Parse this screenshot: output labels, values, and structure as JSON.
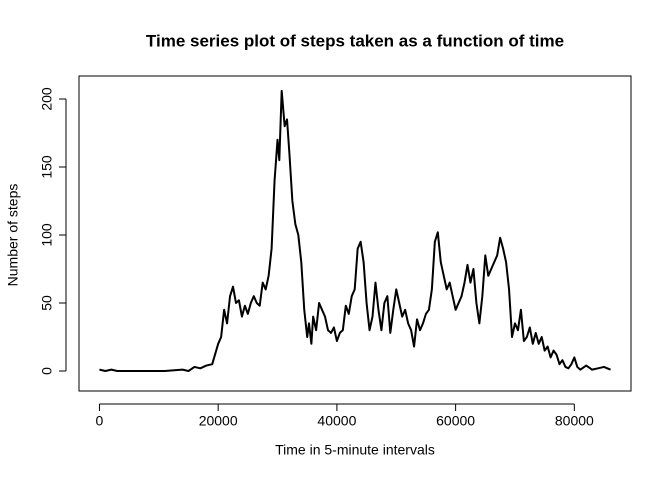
{
  "chart_data": {
    "type": "line",
    "title": "Time series plot of steps taken as a function of time",
    "x_label": "Time in 5-minute intervals",
    "y_label": "Number of steps",
    "color": "#000000",
    "x": [
      0,
      1000,
      2000,
      3000,
      5000,
      8000,
      11000,
      14000,
      15000,
      16000,
      17000,
      18000,
      19000,
      20000,
      20500,
      21000,
      21500,
      22000,
      22500,
      23000,
      23500,
      24000,
      24500,
      25000,
      25500,
      26000,
      26500,
      27000,
      27500,
      28000,
      28500,
      29000,
      29500,
      30000,
      30300,
      30700,
      31200,
      31600,
      32000,
      32500,
      33000,
      33500,
      34000,
      34500,
      35000,
      35300,
      35700,
      36000,
      36500,
      37000,
      37500,
      38000,
      38500,
      39000,
      39500,
      40000,
      40500,
      41000,
      41500,
      42000,
      42500,
      43000,
      43500,
      44000,
      44500,
      45000,
      45500,
      46000,
      46500,
      47000,
      47500,
      48000,
      48500,
      49000,
      49500,
      50000,
      50500,
      51000,
      51500,
      52000,
      52500,
      53000,
      53500,
      54000,
      54500,
      55000,
      55500,
      56000,
      56500,
      57000,
      57500,
      58000,
      58500,
      59000,
      59500,
      60000,
      60500,
      61000,
      61500,
      62000,
      62500,
      63000,
      63500,
      64000,
      64500,
      65000,
      65500,
      66000,
      66500,
      67000,
      67500,
      68000,
      68500,
      69000,
      69500,
      70000,
      70500,
      71000,
      71500,
      72000,
      72500,
      73000,
      73500,
      74000,
      74500,
      75000,
      75500,
      76000,
      76500,
      77000,
      77500,
      78000,
      78500,
      79000,
      79500,
      80000,
      80500,
      81000,
      82000,
      83000,
      84000,
      85000,
      86100
    ],
    "values": [
      1,
      0,
      1,
      0,
      0,
      0,
      0,
      1,
      0,
      3,
      2,
      4,
      5,
      20,
      25,
      45,
      35,
      55,
      62,
      50,
      52,
      40,
      48,
      42,
      50,
      55,
      50,
      48,
      65,
      60,
      70,
      90,
      140,
      170,
      155,
      206,
      180,
      185,
      160,
      125,
      108,
      100,
      80,
      45,
      25,
      35,
      20,
      40,
      30,
      50,
      45,
      40,
      30,
      28,
      32,
      22,
      28,
      30,
      48,
      42,
      55,
      60,
      90,
      95,
      80,
      50,
      30,
      40,
      65,
      45,
      30,
      50,
      55,
      28,
      45,
      60,
      50,
      40,
      45,
      35,
      30,
      18,
      38,
      30,
      35,
      42,
      45,
      60,
      95,
      102,
      80,
      70,
      60,
      65,
      55,
      45,
      50,
      55,
      65,
      78,
      65,
      75,
      50,
      35,
      55,
      85,
      70,
      75,
      80,
      85,
      98,
      90,
      80,
      60,
      25,
      35,
      30,
      45,
      22,
      25,
      32,
      20,
      28,
      20,
      25,
      15,
      18,
      10,
      15,
      12,
      5,
      8,
      3,
      2,
      5,
      10,
      3,
      1,
      4,
      1,
      2,
      3,
      1
    ],
    "xlim": [
      -3444,
      89544
    ],
    "ylim": [
      -14.7,
      216.9
    ],
    "xticks": [
      0,
      20000,
      40000,
      60000,
      80000
    ],
    "yticks": [
      0,
      50,
      100,
      150,
      200
    ]
  }
}
